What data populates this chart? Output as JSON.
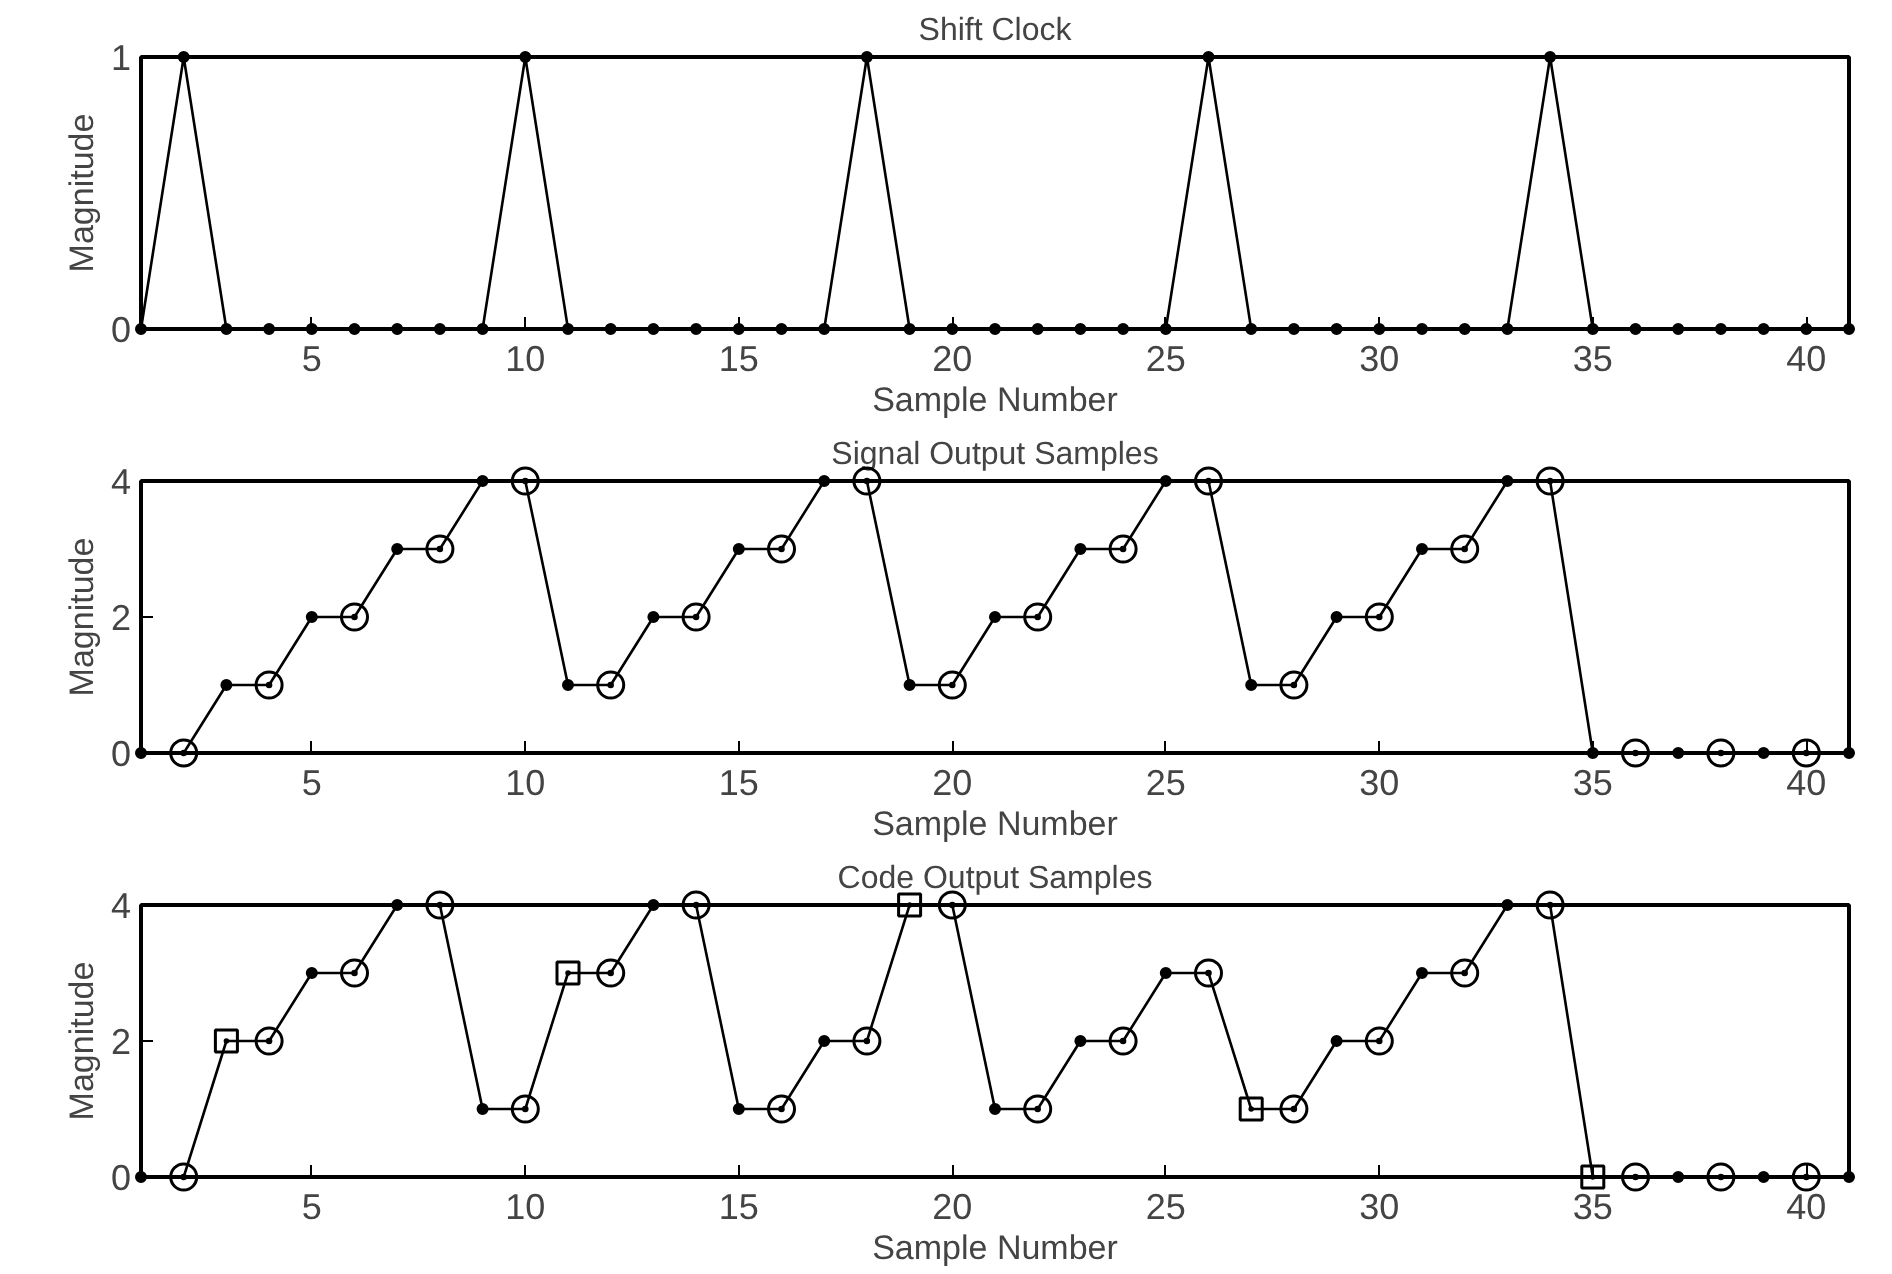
{
  "chart_data": [
    {
      "type": "line",
      "title": "Shift Clock",
      "xlabel": "Sample Number",
      "ylabel": "Magnitude",
      "xlim": [
        1,
        41
      ],
      "xticks": [
        5,
        10,
        15,
        20,
        25,
        30,
        35,
        40
      ],
      "ylim": [
        0,
        1
      ],
      "yticks": [
        0,
        1
      ],
      "grid": false,
      "line_style": "solid",
      "series": [
        {
          "marker": "circle",
          "color": "#000000",
          "x": [
            1,
            2,
            3,
            4,
            5,
            6,
            7,
            8,
            9,
            10,
            11,
            12,
            13,
            14,
            15,
            16,
            17,
            18,
            19,
            20,
            21,
            22,
            23,
            24,
            25,
            26,
            27,
            28,
            29,
            30,
            31,
            32,
            33,
            34,
            35,
            36,
            37,
            38,
            39,
            40,
            41
          ],
          "values": [
            0,
            1,
            0,
            0,
            0,
            0,
            0,
            0,
            0,
            1,
            0,
            0,
            0,
            0,
            0,
            0,
            0,
            1,
            0,
            0,
            0,
            0,
            0,
            0,
            0,
            1,
            0,
            0,
            0,
            0,
            0,
            0,
            0,
            1,
            0,
            0,
            0,
            0,
            0,
            0,
            0
          ]
        }
      ]
    },
    {
      "type": "line",
      "title": "Signal Output Samples",
      "xlabel": "Sample Number",
      "ylabel": "Magnitude",
      "xlim": [
        1,
        41
      ],
      "xticks": [
        5,
        10,
        15,
        20,
        25,
        30,
        35,
        40
      ],
      "ylim": [
        0,
        4
      ],
      "yticks": [
        0,
        2,
        4
      ],
      "grid": false,
      "line_style": "solid",
      "series": [
        {
          "marker": "circle",
          "color": "#000000",
          "x": [
            1,
            2,
            3,
            4,
            5,
            6,
            7,
            8,
            9,
            10,
            11,
            12,
            13,
            14,
            15,
            16,
            17,
            18,
            19,
            20,
            21,
            22,
            23,
            24,
            25,
            26,
            27,
            28,
            29,
            30,
            31,
            32,
            33,
            34,
            35,
            36,
            37,
            38,
            39,
            40,
            41
          ],
          "values": [
            0,
            0,
            1,
            1,
            2,
            2,
            3,
            3,
            4,
            4,
            1,
            1,
            2,
            2,
            3,
            3,
            4,
            4,
            1,
            1,
            2,
            2,
            3,
            3,
            4,
            4,
            1,
            1,
            2,
            2,
            3,
            3,
            4,
            4,
            0,
            0,
            0,
            0,
            0,
            0,
            0
          ]
        },
        {
          "type": "scatter",
          "marker": "circle",
          "color": "#000000",
          "x": [
            2,
            4,
            6,
            8,
            10,
            12,
            14,
            16,
            18,
            20,
            22,
            24,
            26,
            28,
            30,
            32,
            34,
            36,
            38,
            40
          ],
          "values": [
            0,
            1,
            2,
            3,
            4,
            1,
            2,
            3,
            4,
            1,
            2,
            3,
            4,
            1,
            2,
            3,
            4,
            0,
            0,
            0
          ]
        }
      ]
    },
    {
      "type": "line",
      "title": "Code Output Samples",
      "xlabel": "Sample Number",
      "ylabel": "Magnitude",
      "xlim": [
        1,
        41
      ],
      "xticks": [
        5,
        10,
        15,
        20,
        25,
        30,
        35,
        40
      ],
      "ylim": [
        0,
        4
      ],
      "yticks": [
        0,
        2,
        4
      ],
      "grid": false,
      "line_style": "solid",
      "series": [
        {
          "marker": "circle",
          "color": "#000000",
          "x": [
            1,
            2,
            3,
            4,
            5,
            6,
            7,
            8,
            9,
            10,
            11,
            12,
            13,
            14,
            15,
            16,
            17,
            18,
            19,
            20,
            21,
            22,
            23,
            24,
            25,
            26,
            27,
            28,
            29,
            30,
            31,
            32,
            33,
            34,
            35,
            36,
            37,
            38,
            39,
            40,
            41
          ],
          "values": [
            0,
            0,
            2,
            2,
            3,
            3,
            4,
            4,
            1,
            1,
            3,
            3,
            4,
            4,
            1,
            1,
            2,
            2,
            4,
            4,
            1,
            1,
            2,
            2,
            3,
            3,
            1,
            1,
            2,
            2,
            3,
            3,
            4,
            4,
            0,
            0,
            0,
            0,
            0,
            0,
            0
          ]
        },
        {
          "type": "scatter",
          "marker": "circle",
          "color": "#000000",
          "x": [
            2,
            4,
            6,
            8,
            10,
            12,
            14,
            16,
            18,
            20,
            22,
            24,
            26,
            28,
            30,
            32,
            34,
            36,
            38,
            40
          ],
          "values": [
            0,
            2,
            3,
            4,
            1,
            3,
            4,
            1,
            2,
            4,
            1,
            2,
            3,
            1,
            2,
            3,
            4,
            0,
            0,
            0
          ]
        },
        {
          "type": "scatter",
          "marker": "square",
          "color": "#000000",
          "x": [
            3,
            11,
            19,
            27,
            35
          ],
          "values": [
            2,
            3,
            4,
            1,
            0
          ]
        }
      ]
    }
  ]
}
